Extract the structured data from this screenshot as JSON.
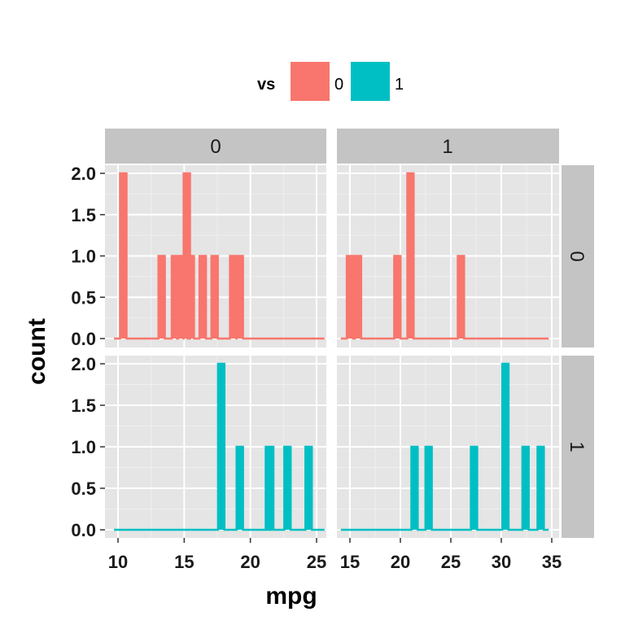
{
  "chart_data": {
    "type": "bar",
    "subtype": "histogram (frequency polygon outline), faceted grid",
    "xlabel": "mpg",
    "ylabel": "count",
    "facet_rows_var": "am",
    "facet_cols_var": "vs",
    "row_strips": [
      "0",
      "1"
    ],
    "col_strips": [
      "0",
      "1"
    ],
    "legend": {
      "title": "vs",
      "position": "top",
      "entries": [
        {
          "label": "0",
          "color": "#F8766D"
        },
        {
          "label": "1",
          "color": "#00BFC4"
        }
      ]
    },
    "ylim": [
      0,
      2
    ],
    "yticks": [
      "0.0",
      "0.5",
      "1.0",
      "1.5",
      "2.0"
    ],
    "grid": true,
    "panel_background": "#E5E5E5",
    "strip_background": "#C4C4C4",
    "columns": [
      {
        "xlim": [
          10.4,
          25.0
        ],
        "xticks": [
          "10",
          "15",
          "20",
          "25"
        ]
      },
      {
        "xlim": [
          15.0,
          33.9
        ],
        "xticks": [
          "15",
          "20",
          "25",
          "30",
          "35"
        ]
      }
    ],
    "panels": [
      {
        "row": 0,
        "col": 0,
        "color": "#F8766D",
        "bins": [
          {
            "x": 10.4,
            "count": 2
          },
          {
            "x": 13.3,
            "count": 1
          },
          {
            "x": 14.3,
            "count": 1
          },
          {
            "x": 14.7,
            "count": 1
          },
          {
            "x": 15.2,
            "count": 2
          },
          {
            "x": 15.5,
            "count": 1
          },
          {
            "x": 16.4,
            "count": 1
          },
          {
            "x": 17.3,
            "count": 1
          },
          {
            "x": 18.7,
            "count": 1
          },
          {
            "x": 19.2,
            "count": 1
          }
        ]
      },
      {
        "row": 0,
        "col": 1,
        "color": "#F8766D",
        "bins": [
          {
            "x": 15.0,
            "count": 1
          },
          {
            "x": 15.8,
            "count": 1
          },
          {
            "x": 19.7,
            "count": 1
          },
          {
            "x": 21.0,
            "count": 2
          },
          {
            "x": 26.0,
            "count": 1
          }
        ]
      },
      {
        "row": 1,
        "col": 0,
        "color": "#00BFC4",
        "bins": [
          {
            "x": 17.8,
            "count": 2
          },
          {
            "x": 19.2,
            "count": 1
          },
          {
            "x": 21.4,
            "count": 1
          },
          {
            "x": 21.5,
            "count": 1
          },
          {
            "x": 22.8,
            "count": 1
          },
          {
            "x": 24.4,
            "count": 1
          }
        ]
      },
      {
        "row": 1,
        "col": 1,
        "color": "#00BFC4",
        "bins": [
          {
            "x": 21.4,
            "count": 1
          },
          {
            "x": 22.8,
            "count": 1
          },
          {
            "x": 27.3,
            "count": 1
          },
          {
            "x": 30.4,
            "count": 2
          },
          {
            "x": 32.4,
            "count": 1
          },
          {
            "x": 33.9,
            "count": 1
          }
        ]
      }
    ]
  }
}
